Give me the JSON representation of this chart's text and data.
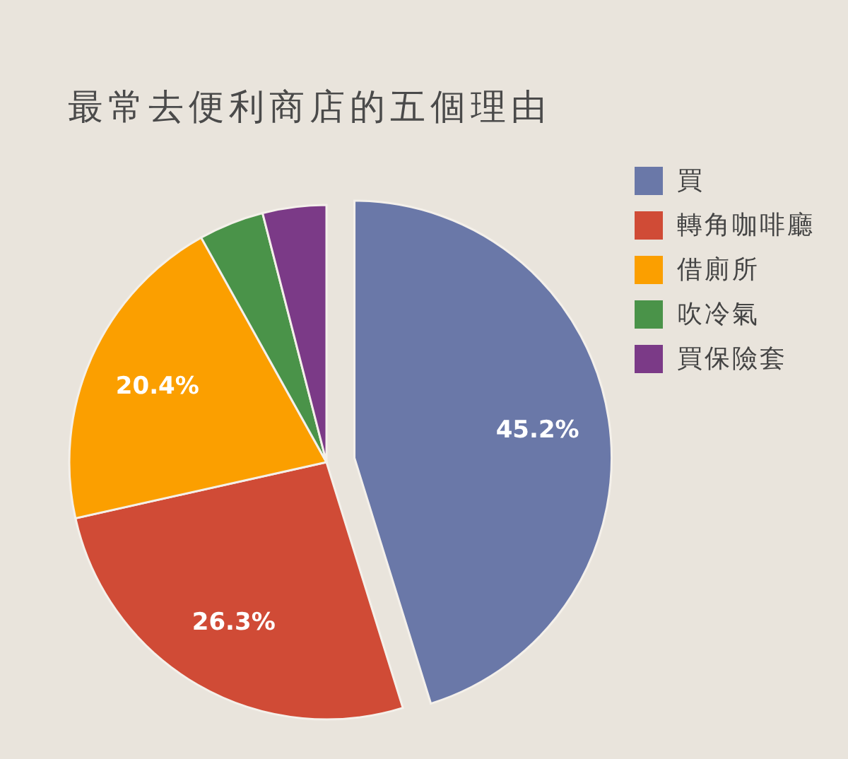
{
  "chart_data": {
    "type": "pie",
    "title": "最常去便利商店的五個理由",
    "categories": [
      "買",
      "轉角咖啡廳",
      "借廁所",
      "吹冷氣",
      "買保險套"
    ],
    "values": [
      45.2,
      26.3,
      20.4,
      4.1,
      4.0
    ],
    "colors": [
      "#6a78a8",
      "#d04b36",
      "#fb9f00",
      "#4a9349",
      "#7b3a87"
    ],
    "value_labels": [
      "45.2%",
      "26.3%",
      "20.4%",
      null,
      null
    ],
    "legend": "top right"
  }
}
